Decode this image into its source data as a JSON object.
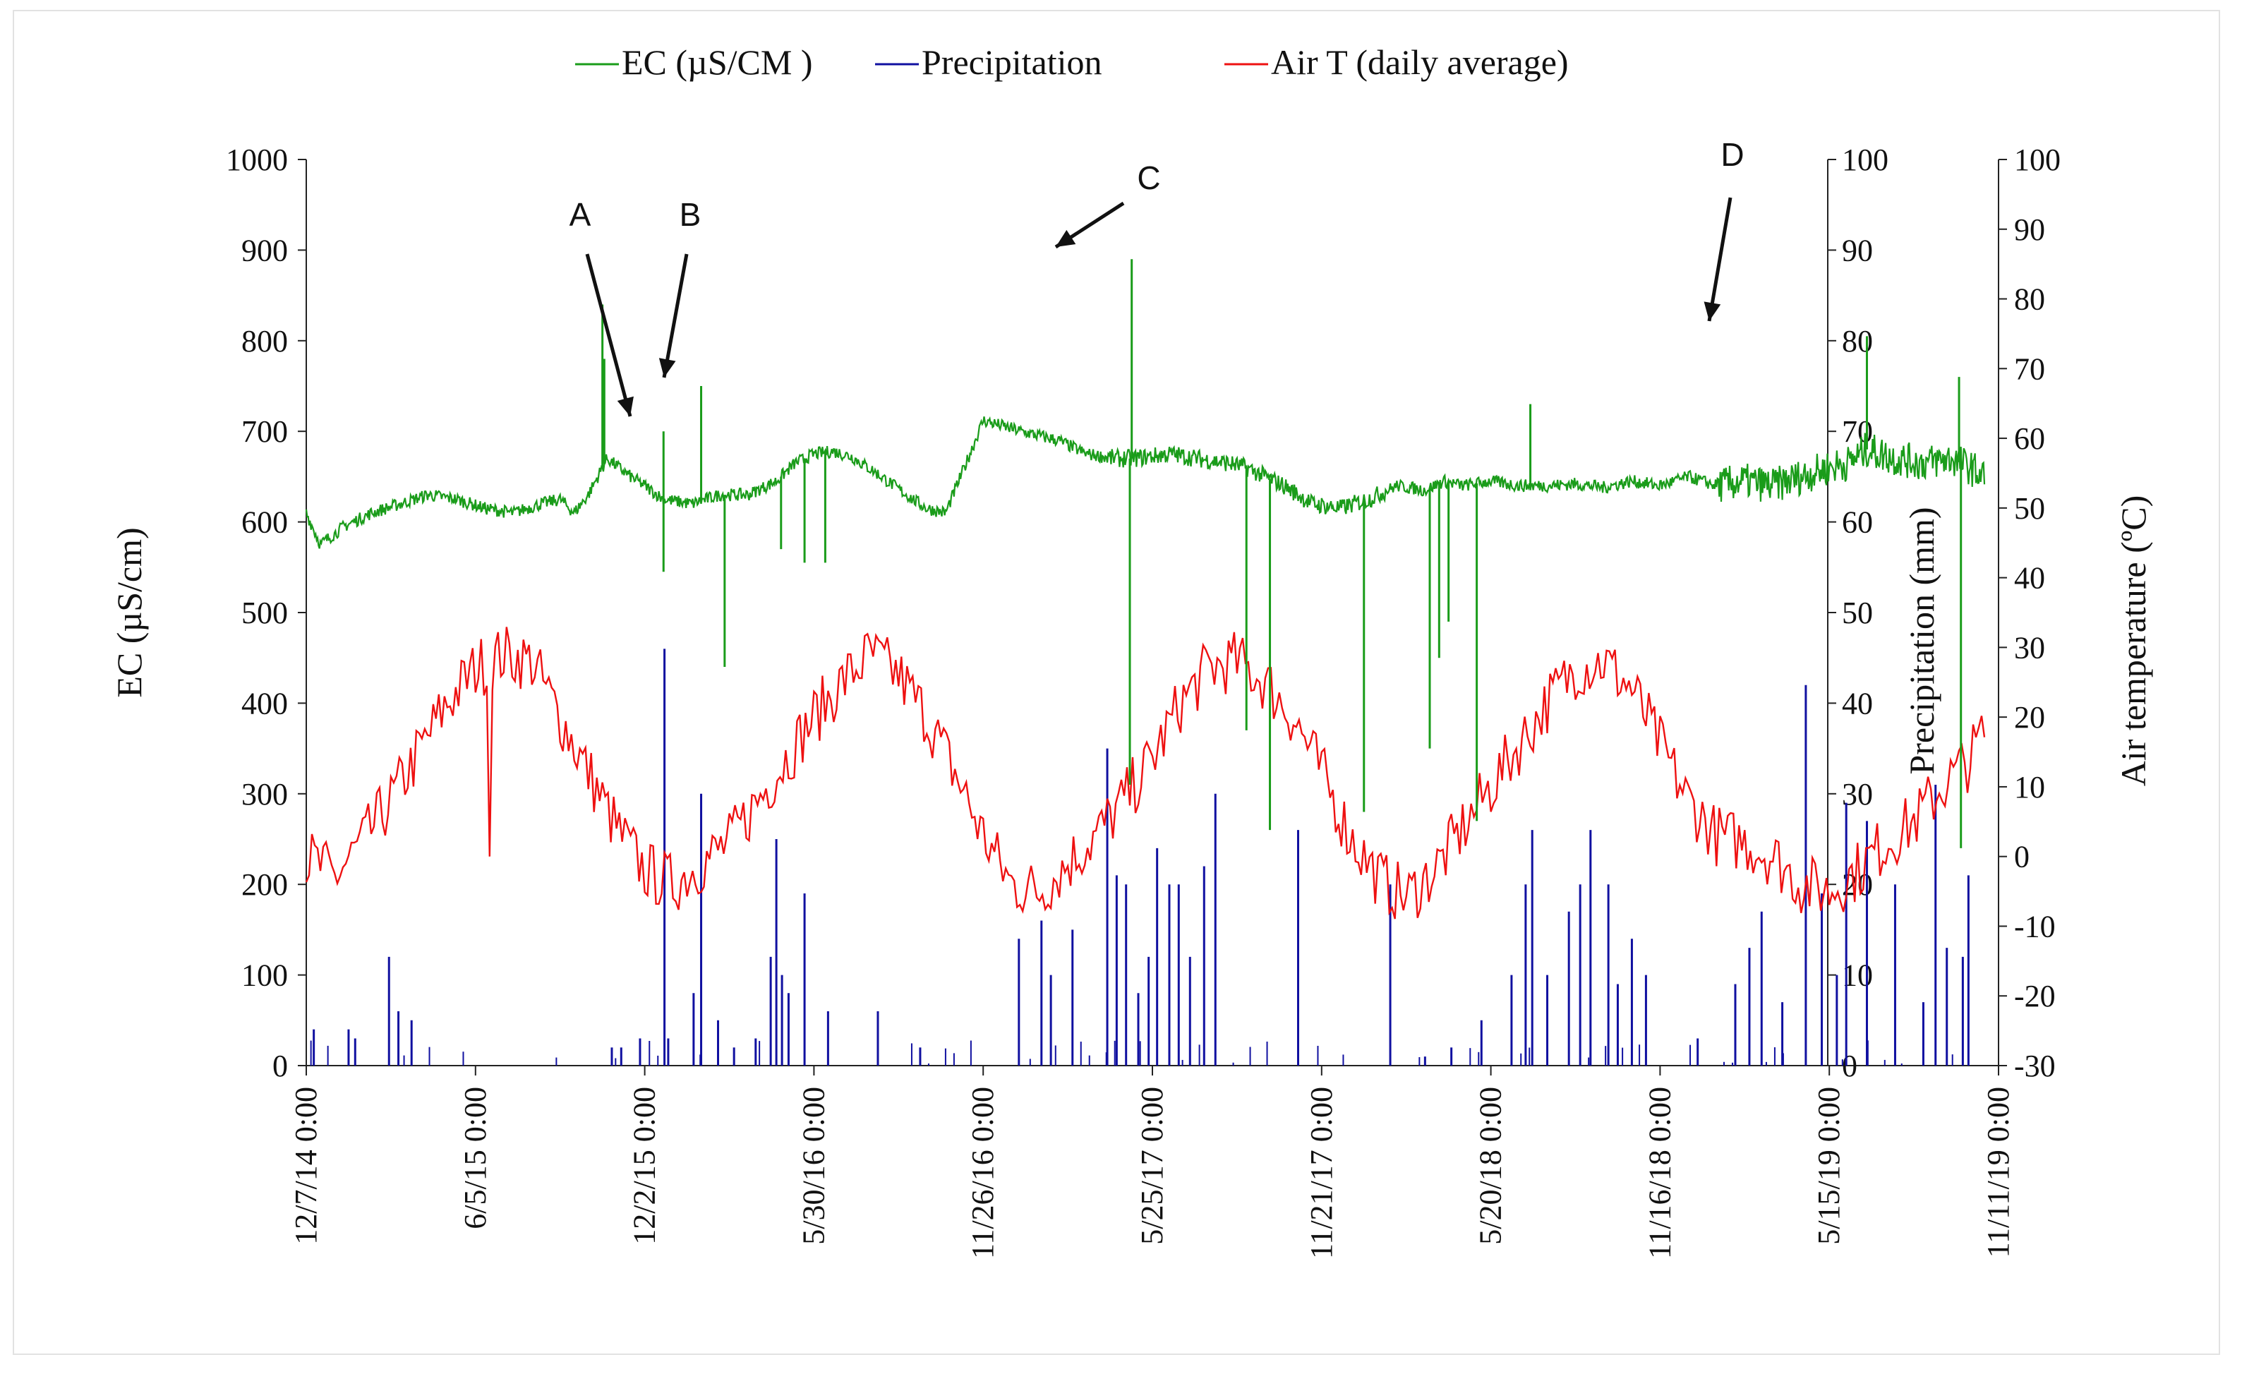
{
  "chart_data": {
    "type": "line",
    "title": "",
    "legend_position": "top",
    "x_axis": {
      "label": "",
      "ticks": [
        "12/7/14 0:00",
        "6/5/15 0:00",
        "12/2/15 0:00",
        "5/30/16 0:00",
        "11/26/16 0:00",
        "5/25/17 0:00",
        "11/21/17 0:00",
        "5/20/18 0:00",
        "11/16/18 0:00",
        "5/15/19 0:00",
        "11/11/19 0:00"
      ],
      "range_days": [
        0,
        1800
      ]
    },
    "y_axes": {
      "ec": {
        "label": "EC (µS/cm)",
        "range": [
          0,
          1000
        ],
        "ticks": [
          "0",
          "100",
          "200",
          "300",
          "400",
          "500",
          "600",
          "700",
          "800",
          "900",
          "1000"
        ]
      },
      "precip": {
        "label": "Precipitation (mm)",
        "range": [
          0,
          100
        ],
        "ticks": [
          "0",
          "10",
          "20",
          "30",
          "40",
          "50",
          "60",
          "70",
          "80",
          "90",
          "100"
        ]
      },
      "temp": {
        "label": "Air temperature (ºC)",
        "range": [
          -30,
          100
        ],
        "ticks": [
          "-30",
          "-20",
          "-10",
          "0",
          "10",
          "20",
          "30",
          "40",
          "50",
          "60",
          "70",
          "80",
          "90",
          "100"
        ]
      }
    },
    "series": [
      {
        "name": "EC (µS/CM )",
        "axis": "ec",
        "color": "#1a9c1a",
        "x_days": [
          0,
          15,
          40,
          70,
          100,
          130,
          160,
          190,
          220,
          250,
          270,
          285,
          300,
          320,
          345,
          360,
          380,
          410,
          440,
          470,
          500,
          520,
          540,
          560,
          580,
          605,
          625,
          645,
          660,
          680,
          700,
          720,
          760,
          800,
          830,
          860,
          880,
          920,
          960,
          980,
          1000,
          1040,
          1070,
          1100,
          1130,
          1160,
          1190,
          1210,
          1230,
          1260,
          1290,
          1320,
          1350,
          1380,
          1410,
          1440,
          1470,
          1500,
          1530,
          1560,
          1590,
          1620,
          1640,
          1660,
          1690,
          1720,
          1750,
          1770,
          1785
        ],
        "values": [
          610,
          575,
          595,
          610,
          620,
          630,
          625,
          615,
          610,
          620,
          625,
          610,
          630,
          670,
          650,
          640,
          625,
          620,
          630,
          630,
          645,
          665,
          675,
          678,
          672,
          655,
          640,
          625,
          615,
          610,
          660,
          712,
          700,
          690,
          675,
          670,
          670,
          675,
          668,
          665,
          660,
          640,
          620,
          615,
          625,
          640,
          635,
          645,
          640,
          645,
          640,
          640,
          642,
          638,
          645,
          640,
          650,
          640,
          645,
          640,
          650,
          660,
          665,
          680,
          670,
          665,
          670,
          660,
          650
        ],
        "spikes": [
          {
            "x": 315,
            "v": 840
          },
          {
            "x": 317,
            "v": 780
          },
          {
            "x": 380,
            "v": 700
          },
          {
            "x": 380,
            "v": 545
          },
          {
            "x": 420,
            "v": 750
          },
          {
            "x": 445,
            "v": 440
          },
          {
            "x": 505,
            "v": 570
          },
          {
            "x": 530,
            "v": 555
          },
          {
            "x": 552,
            "v": 555
          },
          {
            "x": 878,
            "v": 890
          },
          {
            "x": 876,
            "v": 310
          },
          {
            "x": 1000,
            "v": 370
          },
          {
            "x": 1025,
            "v": 260
          },
          {
            "x": 1125,
            "v": 280
          },
          {
            "x": 1195,
            "v": 350
          },
          {
            "x": 1205,
            "v": 450
          },
          {
            "x": 1215,
            "v": 490
          },
          {
            "x": 1245,
            "v": 270
          },
          {
            "x": 1302,
            "v": 730
          },
          {
            "x": 1660,
            "v": 805
          },
          {
            "x": 1758,
            "v": 760
          },
          {
            "x": 1760,
            "v": 240
          }
        ]
      },
      {
        "name": "Precipitation",
        "axis": "precip",
        "color": "#1010a0",
        "bars": [
          {
            "x": 8,
            "v": 4
          },
          {
            "x": 45,
            "v": 4
          },
          {
            "x": 52,
            "v": 3
          },
          {
            "x": 88,
            "v": 12
          },
          {
            "x": 98,
            "v": 6
          },
          {
            "x": 112,
            "v": 5
          },
          {
            "x": 325,
            "v": 2
          },
          {
            "x": 335,
            "v": 2
          },
          {
            "x": 355,
            "v": 3
          },
          {
            "x": 381,
            "v": 46
          },
          {
            "x": 385,
            "v": 3
          },
          {
            "x": 412,
            "v": 8
          },
          {
            "x": 420,
            "v": 30
          },
          {
            "x": 438,
            "v": 5
          },
          {
            "x": 455,
            "v": 2
          },
          {
            "x": 478,
            "v": 3
          },
          {
            "x": 494,
            "v": 12
          },
          {
            "x": 500,
            "v": 25
          },
          {
            "x": 506,
            "v": 10
          },
          {
            "x": 513,
            "v": 8
          },
          {
            "x": 530,
            "v": 19
          },
          {
            "x": 555,
            "v": 6
          },
          {
            "x": 608,
            "v": 6
          },
          {
            "x": 653,
            "v": 2
          },
          {
            "x": 758,
            "v": 14
          },
          {
            "x": 782,
            "v": 16
          },
          {
            "x": 792,
            "v": 10
          },
          {
            "x": 815,
            "v": 15
          },
          {
            "x": 852,
            "v": 35
          },
          {
            "x": 862,
            "v": 21
          },
          {
            "x": 872,
            "v": 20
          },
          {
            "x": 885,
            "v": 8
          },
          {
            "x": 896,
            "v": 12
          },
          {
            "x": 905,
            "v": 24
          },
          {
            "x": 918,
            "v": 20
          },
          {
            "x": 928,
            "v": 20
          },
          {
            "x": 940,
            "v": 12
          },
          {
            "x": 955,
            "v": 22
          },
          {
            "x": 967,
            "v": 30
          },
          {
            "x": 1055,
            "v": 26
          },
          {
            "x": 1153,
            "v": 20
          },
          {
            "x": 1190,
            "v": 1
          },
          {
            "x": 1218,
            "v": 2
          },
          {
            "x": 1250,
            "v": 5
          },
          {
            "x": 1282,
            "v": 10
          },
          {
            "x": 1297,
            "v": 20
          },
          {
            "x": 1304,
            "v": 26
          },
          {
            "x": 1320,
            "v": 10
          },
          {
            "x": 1343,
            "v": 17
          },
          {
            "x": 1355,
            "v": 20
          },
          {
            "x": 1366,
            "v": 26
          },
          {
            "x": 1385,
            "v": 20
          },
          {
            "x": 1395,
            "v": 9
          },
          {
            "x": 1410,
            "v": 14
          },
          {
            "x": 1425,
            "v": 10
          },
          {
            "x": 1480,
            "v": 3
          },
          {
            "x": 1520,
            "v": 9
          },
          {
            "x": 1535,
            "v": 13
          },
          {
            "x": 1548,
            "v": 17
          },
          {
            "x": 1570,
            "v": 7
          },
          {
            "x": 1595,
            "v": 42
          },
          {
            "x": 1612,
            "v": 19
          },
          {
            "x": 1628,
            "v": 10
          },
          {
            "x": 1638,
            "v": 29
          },
          {
            "x": 1660,
            "v": 27
          },
          {
            "x": 1690,
            "v": 20
          },
          {
            "x": 1720,
            "v": 7
          },
          {
            "x": 1733,
            "v": 31
          },
          {
            "x": 1745,
            "v": 13
          },
          {
            "x": 1762,
            "v": 12
          },
          {
            "x": 1768,
            "v": 21
          }
        ]
      },
      {
        "name": "Air T (daily average)",
        "axis": "temp",
        "color": "#ee1111",
        "x_days": [
          0,
          30,
          60,
          90,
          120,
          150,
          180,
          210,
          240,
          270,
          300,
          330,
          360,
          390,
          420,
          450,
          480,
          510,
          540,
          570,
          600,
          630,
          660,
          690,
          720,
          750,
          780,
          810,
          840,
          870,
          900,
          930,
          960,
          990,
          1020,
          1050,
          1080,
          1110,
          1140,
          1170,
          1200,
          1230,
          1260,
          1290,
          1320,
          1350,
          1380,
          1410,
          1440,
          1470,
          1500,
          1530,
          1560,
          1590,
          1620,
          1650,
          1680,
          1710,
          1740,
          1770,
          1785
        ],
        "values": [
          0,
          -3,
          2,
          8,
          15,
          22,
          27,
          29,
          28,
          20,
          12,
          4,
          -2,
          -4,
          -1,
          2,
          8,
          14,
          20,
          25,
          29,
          26,
          20,
          12,
          3,
          -4,
          -5,
          -1,
          3,
          8,
          14,
          22,
          27,
          28,
          25,
          20,
          12,
          3,
          -3,
          -6,
          -2,
          4,
          10,
          16,
          22,
          27,
          28,
          24,
          16,
          8,
          3,
          2,
          0,
          -4,
          -5,
          -2,
          2,
          5,
          10,
          14,
          18
        ]
      }
    ],
    "annotations": [
      {
        "label": "A",
        "target_x": 380,
        "target_v": 655
      },
      {
        "label": "B",
        "target_x": 420,
        "target_v": 760
      },
      {
        "label": "C",
        "target_x": 878,
        "target_v": 895
      },
      {
        "label": "D",
        "target_x": 1660,
        "target_v": 815
      }
    ]
  }
}
